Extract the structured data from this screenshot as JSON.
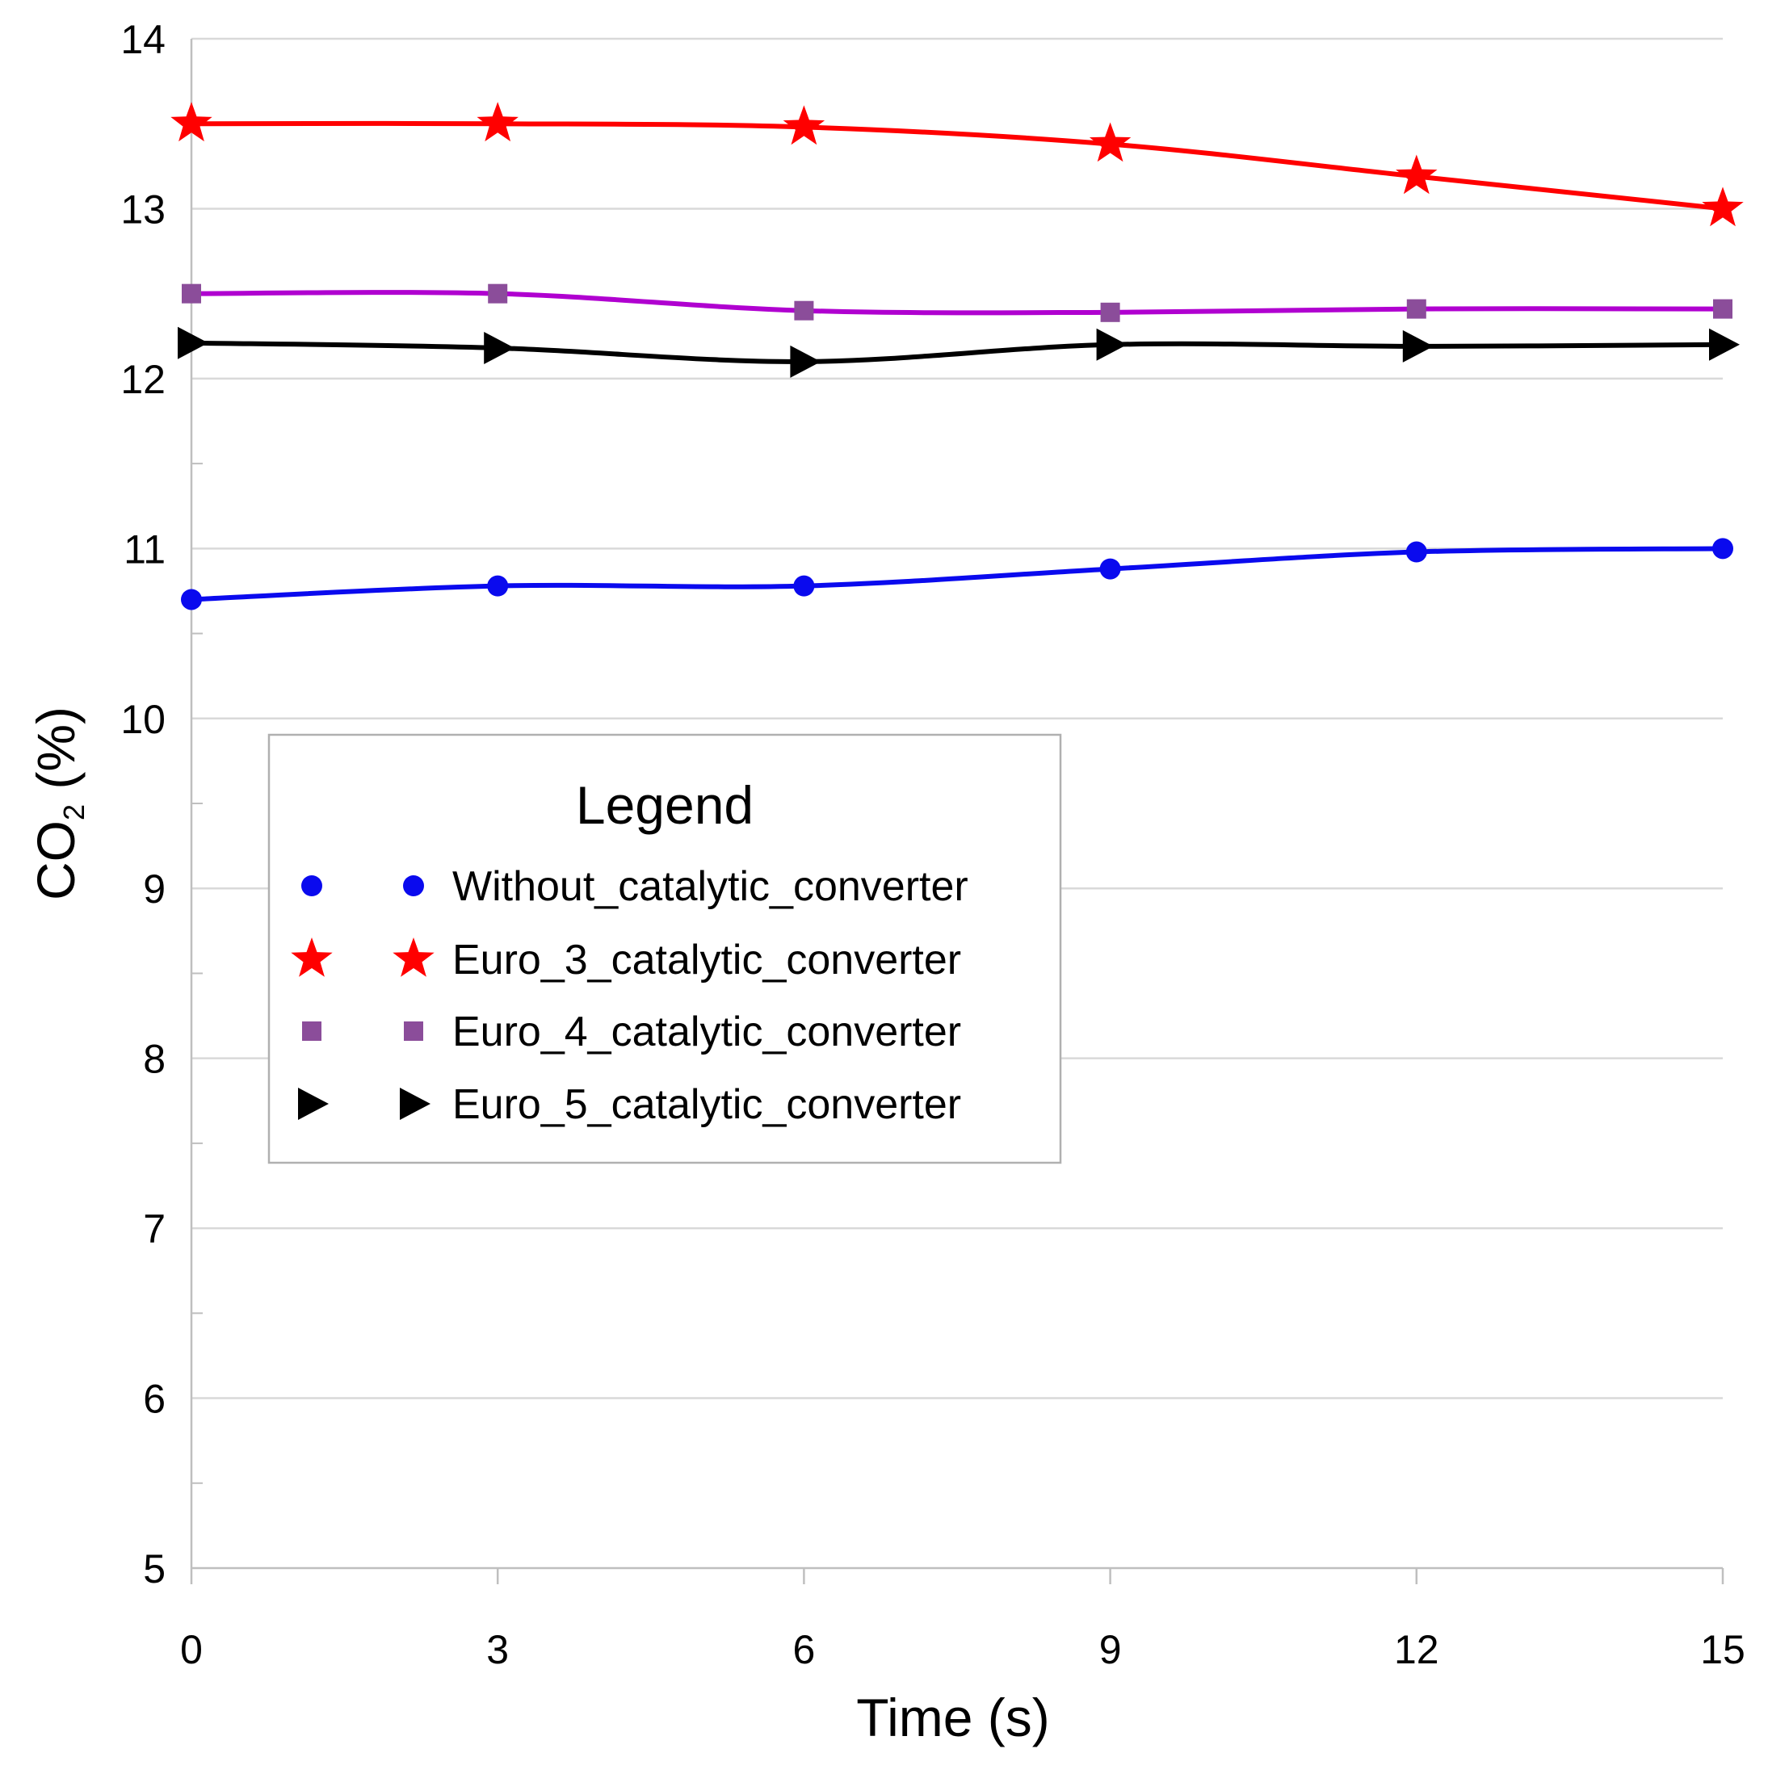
{
  "chart_data": {
    "type": "line",
    "title": "",
    "xlabel": "Time (s)",
    "ylabel_main": "CO",
    "ylabel_sub": "2",
    "ylabel_suffix": " (%)",
    "xlim": [
      0,
      15
    ],
    "ylim": [
      5,
      14
    ],
    "x_ticks": [
      0,
      3,
      6,
      9,
      12,
      15
    ],
    "y_ticks": [
      5,
      6,
      7,
      8,
      9,
      10,
      11,
      12,
      13,
      14
    ],
    "x": [
      0,
      3,
      6,
      9,
      12,
      15
    ],
    "grid": true,
    "legend": {
      "title": "Legend",
      "placement": "center-left"
    },
    "series": [
      {
        "name": "Without_catalytic_converter",
        "color": "#0a0aee",
        "marker": "circle",
        "values": [
          10.7,
          10.78,
          10.78,
          10.88,
          10.98,
          11.0
        ]
      },
      {
        "name": "Euro_3_catalytic_converter",
        "color": "#ff0000",
        "marker_color": "#ff0000",
        "marker": "star",
        "values": [
          13.5,
          13.5,
          13.48,
          13.38,
          13.19,
          13.0
        ]
      },
      {
        "name": "Euro_4_catalytic_converter",
        "color": "#b000d0",
        "marker_color": "#8b4d9a",
        "marker": "square",
        "values": [
          12.5,
          12.5,
          12.4,
          12.39,
          12.41,
          12.41
        ]
      },
      {
        "name": "Euro_5_catalytic_converter",
        "color": "#000000",
        "marker_color": "#000000",
        "marker": "triangle-right",
        "values": [
          12.21,
          12.18,
          12.1,
          12.2,
          12.19,
          12.2
        ]
      }
    ]
  }
}
